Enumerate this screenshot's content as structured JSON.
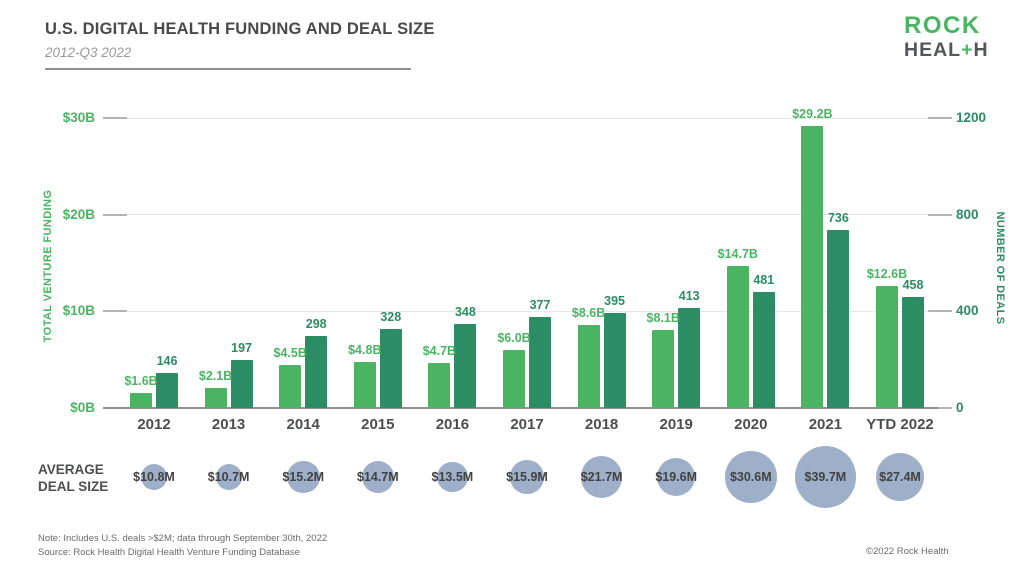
{
  "header": {
    "title": "U.S. DIGITAL HEALTH FUNDING AND DEAL SIZE",
    "subtitle": "2012-Q3 2022"
  },
  "logo": {
    "line1": "ROCK",
    "line2_pre": "HEAL",
    "line2_plus": "+",
    "line2_post": "H"
  },
  "chart_data": {
    "type": "bar",
    "title": "U.S. Digital Health Funding and Deal Size, 2012-Q3 2022",
    "categories": [
      "2012",
      "2013",
      "2014",
      "2015",
      "2016",
      "2017",
      "2018",
      "2019",
      "2020",
      "2021",
      "YTD 2022"
    ],
    "series": [
      {
        "name": "Total Venture Funding ($B)",
        "axis": "left",
        "color": "#4bb463",
        "values": [
          1.6,
          2.1,
          4.5,
          4.8,
          4.7,
          6.0,
          8.6,
          8.1,
          14.7,
          29.2,
          12.6
        ],
        "labels": [
          "$1.6B",
          "$2.1B",
          "$4.5B",
          "$4.8B",
          "$4.7B",
          "$6.0B",
          "$8.6B",
          "$8.1B",
          "$14.7B",
          "$29.2B",
          "$12.6B"
        ]
      },
      {
        "name": "Number of Deals",
        "axis": "right",
        "color": "#2c8c64",
        "values": [
          146,
          197,
          298,
          328,
          348,
          377,
          395,
          413,
          481,
          736,
          458
        ],
        "labels": [
          "146",
          "197",
          "298",
          "328",
          "348",
          "377",
          "395",
          "413",
          "481",
          "736",
          "458"
        ]
      }
    ],
    "left_axis": {
      "title": "TOTAL VENTURE FUNDING",
      "ticks": [
        "$0B",
        "$10B",
        "$20B",
        "$30B"
      ],
      "range": [
        0,
        30
      ]
    },
    "right_axis": {
      "title": "NUMBER OF DEALS",
      "ticks": [
        "0",
        "400",
        "800",
        "1200"
      ],
      "range": [
        0,
        1200
      ]
    },
    "grid": "horizontal",
    "legend": "none",
    "bubbles": {
      "name": "Average Deal Size ($M)",
      "label_line1": "AVERAGE",
      "label_line2": "DEAL SIZE",
      "color": "#9dafc9",
      "values": [
        10.8,
        10.7,
        15.2,
        14.7,
        13.5,
        15.9,
        21.7,
        19.6,
        30.6,
        39.7,
        27.4
      ],
      "labels": [
        "$10.8M",
        "$10.7M",
        "$15.2M",
        "$14.7M",
        "$13.5M",
        "$15.9M",
        "$21.7M",
        "$19.6M",
        "$30.6M",
        "$39.7M",
        "$27.4M"
      ]
    }
  },
  "footer": {
    "note": "Note: Includes U.S. deals >$2M; data through September 30th, 2022",
    "source": "Source: Rock Health Digital Health Venture Funding Database",
    "copyright": "©2022 Rock Health"
  }
}
